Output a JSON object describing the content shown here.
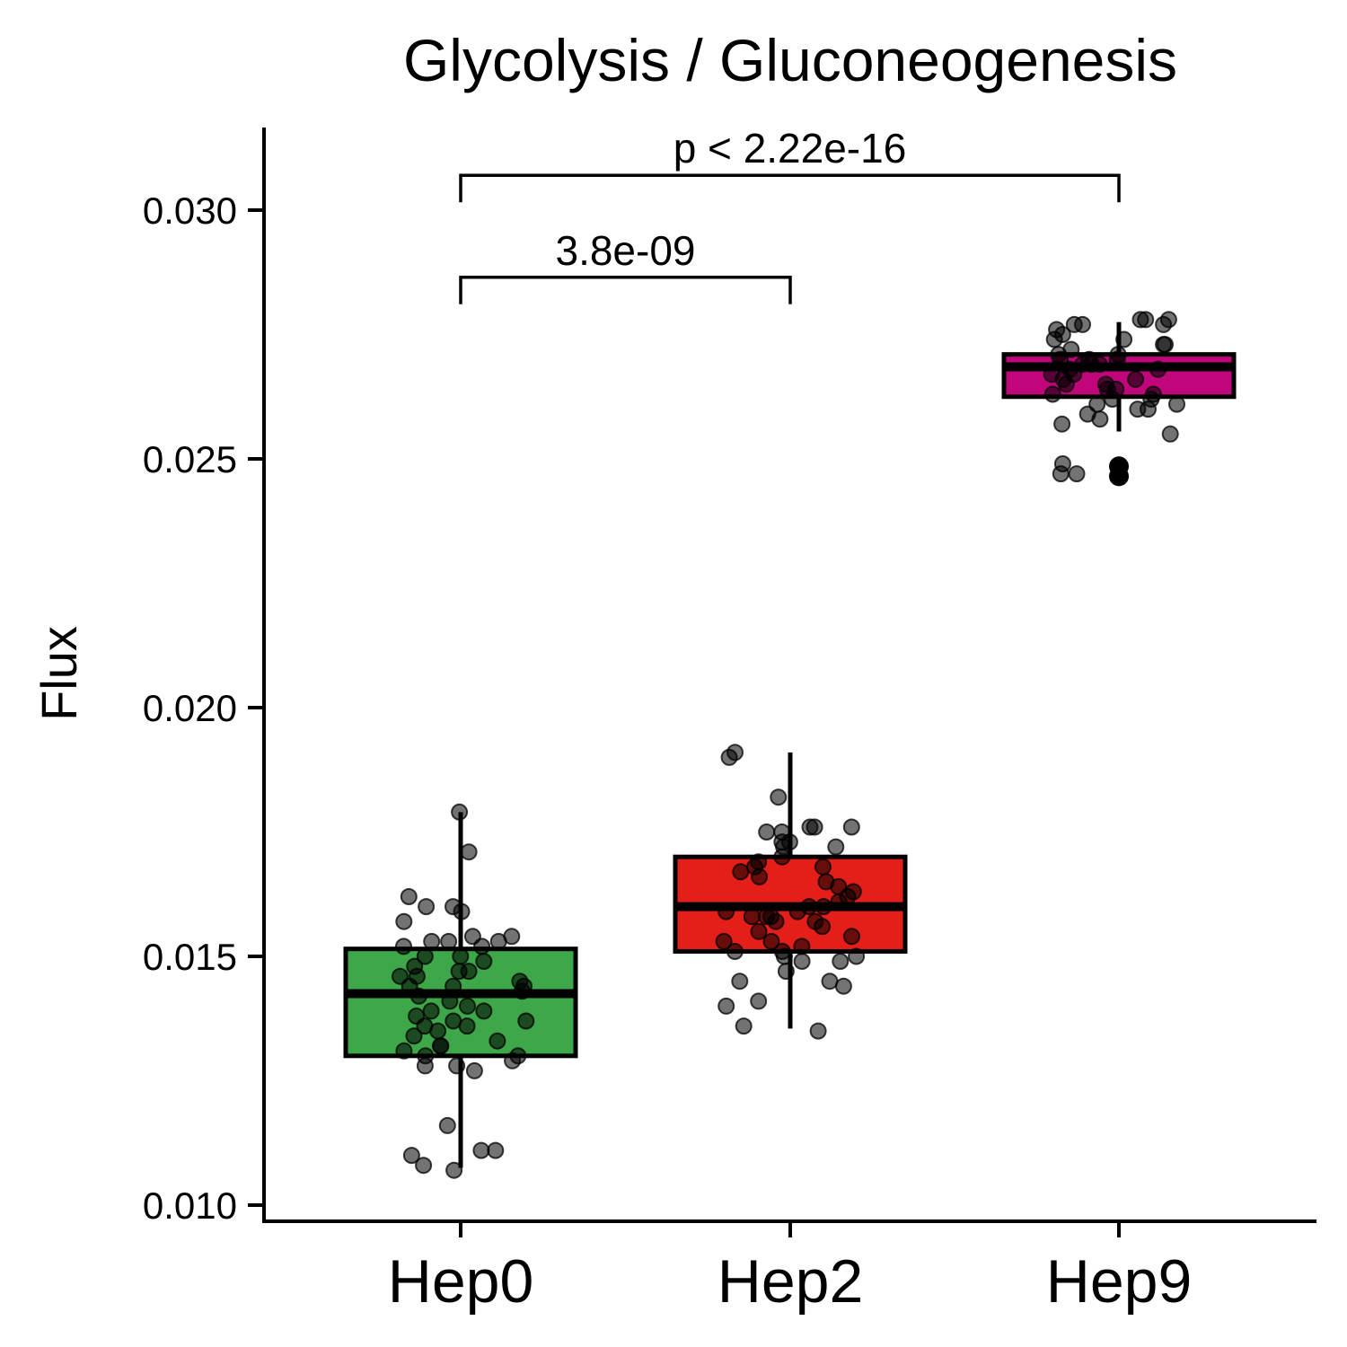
{
  "chart_data": {
    "type": "box",
    "title": "Glycolysis / Gluconeogenesis",
    "xlabel": "",
    "ylabel": "Flux",
    "ylim": [
      0.0097,
      0.0316
    ],
    "yticks": [
      0.01,
      0.015,
      0.02,
      0.025,
      0.03
    ],
    "ytick_labels": [
      "0.010",
      "0.015",
      "0.020",
      "0.025",
      "0.030"
    ],
    "categories": [
      "Hep0",
      "Hep2",
      "Hep9"
    ],
    "grid": false,
    "legend": "none",
    "boxes": [
      {
        "category": "Hep0",
        "color": "#3ea74a",
        "q1": 0.013,
        "median": 0.01425,
        "q3": 0.01515,
        "whisker_low": 0.01075,
        "whisker_high": 0.0179,
        "outliers": []
      },
      {
        "category": "Hep2",
        "color": "#e41f1a",
        "q1": 0.0151,
        "median": 0.016,
        "q3": 0.017,
        "whisker_low": 0.01355,
        "whisker_high": 0.0191,
        "outliers": []
      },
      {
        "category": "Hep9",
        "color": "#c0067a",
        "q1": 0.02625,
        "median": 0.02685,
        "q3": 0.0271,
        "whisker_low": 0.02555,
        "whisker_high": 0.02775,
        "outliers": [
          0.02485,
          0.02465
        ]
      }
    ],
    "points": [
      {
        "category": "Hep0",
        "y": [
          0.0179,
          0.0171,
          0.0162,
          0.016,
          0.016,
          0.0159,
          0.0157,
          0.0154,
          0.0154,
          0.0153,
          0.0153,
          0.0153,
          0.0152,
          0.0152,
          0.015,
          0.015,
          0.0149,
          0.0148,
          0.0147,
          0.0147,
          0.0146,
          0.0146,
          0.0145,
          0.0144,
          0.0144,
          0.0144,
          0.0143,
          0.0142,
          0.0141,
          0.014,
          0.0139,
          0.0139,
          0.0138,
          0.0137,
          0.0137,
          0.0136,
          0.0136,
          0.0135,
          0.0134,
          0.0133,
          0.0132,
          0.0132,
          0.0131,
          0.013,
          0.013,
          0.0129,
          0.0128,
          0.0128,
          0.0127,
          0.0116,
          0.0111,
          0.0111,
          0.011,
          0.0108,
          0.0107
        ]
      },
      {
        "category": "Hep2",
        "y": [
          0.0191,
          0.019,
          0.0182,
          0.0176,
          0.0176,
          0.0176,
          0.0175,
          0.0175,
          0.0173,
          0.0173,
          0.0172,
          0.0172,
          0.017,
          0.0169,
          0.0168,
          0.0168,
          0.0167,
          0.0166,
          0.0165,
          0.0164,
          0.0163,
          0.0162,
          0.0161,
          0.016,
          0.016,
          0.0159,
          0.0159,
          0.0158,
          0.0158,
          0.0158,
          0.0157,
          0.0157,
          0.0156,
          0.0155,
          0.0154,
          0.0153,
          0.0153,
          0.0152,
          0.0151,
          0.0151,
          0.015,
          0.015,
          0.0149,
          0.0149,
          0.0147,
          0.0145,
          0.0145,
          0.0144,
          0.0141,
          0.014,
          0.0136,
          0.0135
        ]
      },
      {
        "category": "Hep9",
        "y": [
          0.0278,
          0.0278,
          0.0278,
          0.0277,
          0.0277,
          0.0277,
          0.0276,
          0.0275,
          0.0274,
          0.0274,
          0.0273,
          0.0273,
          0.0272,
          0.0271,
          0.0271,
          0.027,
          0.027,
          0.027,
          0.0269,
          0.0269,
          0.0269,
          0.0268,
          0.0268,
          0.0267,
          0.0267,
          0.0266,
          0.0266,
          0.0265,
          0.0265,
          0.0264,
          0.0264,
          0.0263,
          0.0263,
          0.0262,
          0.0262,
          0.0261,
          0.0261,
          0.026,
          0.026,
          0.0259,
          0.0258,
          0.0257,
          0.0255,
          0.0249,
          0.0247,
          0.0247
        ]
      }
    ],
    "comparisons": [
      {
        "from": "Hep0",
        "to": "Hep2",
        "label": "3.8e-09",
        "y": 0.02865
      },
      {
        "from": "Hep0",
        "to": "Hep9",
        "label": "p < 2.22e-16",
        "y": 0.0307
      }
    ]
  }
}
